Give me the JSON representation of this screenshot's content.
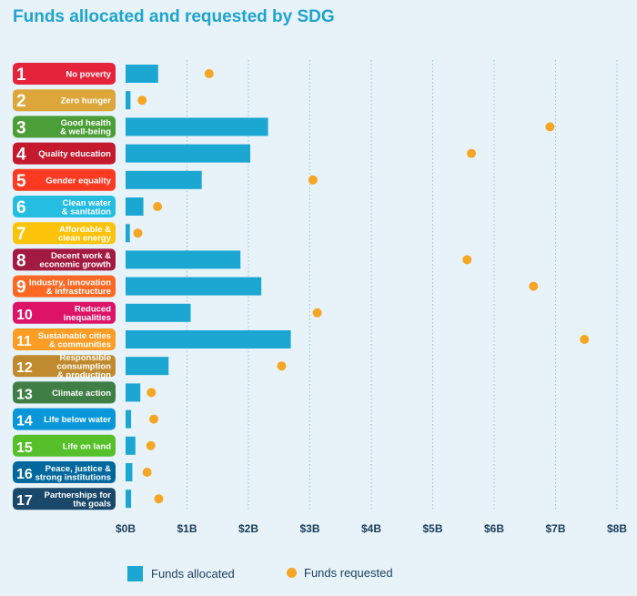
{
  "chart_data": {
    "type": "bar",
    "title": "Funds allocated and requested by SDG",
    "x_tick_labels": [
      "$0B",
      "$1B",
      "$2B",
      "$3B",
      "$4B",
      "$5B",
      "$6B",
      "$7B",
      "$8B"
    ],
    "xlim": [
      0,
      8
    ],
    "series": [
      {
        "name": "Funds allocated",
        "mark": "bar",
        "color": "#1ba7d2",
        "values": [
          0.53,
          0.08,
          2.32,
          2.03,
          1.24,
          0.29,
          0.07,
          1.87,
          2.21,
          1.06,
          2.69,
          0.7,
          0.24,
          0.09,
          0.16,
          0.11,
          0.09
        ]
      },
      {
        "name": "Funds requested",
        "mark": "dot",
        "color": "#f5a623",
        "values": [
          1.36,
          0.27,
          6.91,
          5.63,
          3.05,
          0.52,
          0.2,
          5.56,
          6.64,
          3.12,
          7.47,
          2.54,
          0.42,
          0.46,
          0.41,
          0.35,
          0.54
        ]
      }
    ],
    "categories": [
      {
        "num": "1",
        "label": [
          "No poverty"
        ],
        "color": "#e5243b"
      },
      {
        "num": "2",
        "label": [
          "Zero hunger"
        ],
        "color": "#dda63a"
      },
      {
        "num": "3",
        "label": [
          "Good health",
          "& well-being"
        ],
        "color": "#4c9f38"
      },
      {
        "num": "4",
        "label": [
          "Quality education"
        ],
        "color": "#c5192d"
      },
      {
        "num": "5",
        "label": [
          "Gender equality"
        ],
        "color": "#ff3a21"
      },
      {
        "num": "6",
        "label": [
          "Clean water",
          "& sanitation"
        ],
        "color": "#26bde2"
      },
      {
        "num": "7",
        "label": [
          "Affordable &",
          "clean energy"
        ],
        "color": "#fcc30b"
      },
      {
        "num": "8",
        "label": [
          "Decent work &",
          "economic growth"
        ],
        "color": "#a21942"
      },
      {
        "num": "9",
        "label": [
          "Industry, innovation",
          "& infrastructure"
        ],
        "color": "#fd6925"
      },
      {
        "num": "10",
        "label": [
          "Reduced",
          "inequalities"
        ],
        "color": "#dd1367"
      },
      {
        "num": "11",
        "label": [
          "Sustainable cities",
          "& communities"
        ],
        "color": "#fd9d24"
      },
      {
        "num": "12",
        "label": [
          "Responsible",
          "consumption",
          "& production"
        ],
        "color": "#bf8b2e"
      },
      {
        "num": "13",
        "label": [
          "Climate action"
        ],
        "color": "#3f7e44"
      },
      {
        "num": "14",
        "label": [
          "Life below water"
        ],
        "color": "#0a97d9"
      },
      {
        "num": "15",
        "label": [
          "Life on land"
        ],
        "color": "#56c02b"
      },
      {
        "num": "16",
        "label": [
          "Peace, justice &",
          "strong institutions"
        ],
        "color": "#00689d"
      },
      {
        "num": "17",
        "label": [
          "Partnerships for",
          "the goals"
        ],
        "color": "#19486a"
      }
    ],
    "legend": {
      "position": "bottom",
      "items": [
        "Funds allocated",
        "Funds requested"
      ]
    }
  }
}
